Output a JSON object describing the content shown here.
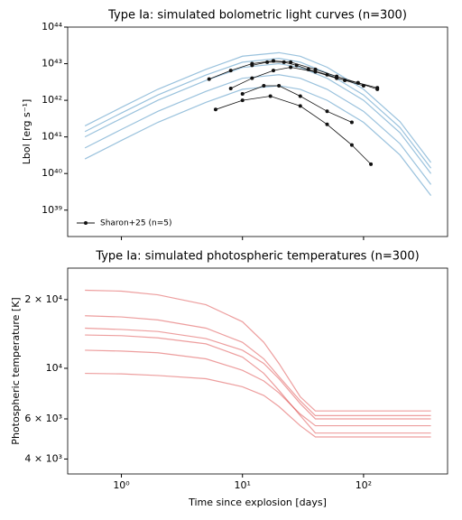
{
  "chart_data": [
    {
      "type": "line",
      "title": "Type Ia: simulated bolometric light curves (n=300)",
      "ylabel": "Lbol [erg s⁻¹]",
      "xlog": true,
      "ylog": true,
      "xlim": [
        0.36,
        494
      ],
      "ylim": [
        1.9e+38,
        1e+44
      ],
      "xticks": [
        1,
        10,
        100
      ],
      "show_xtick_labels": false,
      "yticks": [
        {
          "value": 1e+39,
          "label": "10³⁹"
        },
        {
          "value": 1e+40,
          "label": "10⁴⁰"
        },
        {
          "value": 1e+41,
          "label": "10⁴¹"
        },
        {
          "value": 1e+42,
          "label": "10⁴²"
        },
        {
          "value": 1e+43,
          "label": "10⁴³"
        },
        {
          "value": 1e+44,
          "label": "10⁴⁴"
        }
      ],
      "x": [
        0.5,
        1,
        2,
        5,
        10,
        20,
        30,
        50,
        100,
        200,
        360
      ],
      "color": "#1f77b4",
      "series": [
        {
          "values": [
            1e+41,
            3.2e+41,
            1e+42,
            3.5e+42,
            7.9e+42,
            1e+43,
            7.9e+42,
            4e+42,
            1e+42,
            1.3e+41,
            1e+40
          ]
        },
        {
          "values": [
            2e+41,
            6.4e+41,
            2e+42,
            7e+42,
            1.6e+43,
            2e+43,
            1.6e+43,
            8e+42,
            2e+42,
            2.6e+41,
            2e+40
          ]
        },
        {
          "values": [
            5e+40,
            1.6e+41,
            5e+41,
            1.75e+42,
            4e+42,
            5e+42,
            4e+42,
            2e+42,
            5e+41,
            6.5e+40,
            5e+39
          ]
        },
        {
          "values": [
            2.5e+40,
            8e+40,
            2.5e+41,
            8.8e+41,
            2e+42,
            2.5e+42,
            2e+42,
            1e+42,
            2.5e+41,
            3.2e+40,
            2.5e+39
          ]
        },
        {
          "values": [
            1.4e+41,
            4.5e+41,
            1.4e+42,
            4.9e+42,
            1.1e+43,
            1.4e+43,
            1.1e+43,
            5.6e+42,
            1.4e+42,
            1.8e+41,
            1.4e+40
          ]
        }
      ],
      "observed": {
        "name": "Sharon+25 (n=5)",
        "color": "#111111",
        "legend": "lower left",
        "curves": [
          {
            "x": [
              5.3,
              8,
              12,
              18,
              25,
              40,
              60,
              90,
              130
            ],
            "values": [
              3.8e+42,
              6.5e+42,
              1e+43,
              1.2e+43,
              1.1e+43,
              7e+42,
              4.5e+42,
              3e+42,
              2.2e+42
            ]
          },
          {
            "x": [
              8,
              12,
              18,
              25,
              40,
              60,
              90,
              130
            ],
            "values": [
              2.1e+42,
              4e+42,
              6.5e+42,
              8e+42,
              6e+42,
              4e+42,
              3e+42,
              2e+42
            ]
          },
          {
            "x": [
              10,
              15,
              20,
              30,
              50,
              80
            ],
            "values": [
              1.5e+42,
              2.5e+42,
              2.5e+42,
              1.3e+42,
              5e+41,
              2.5e+41
            ]
          },
          {
            "x": [
              6,
              10,
              17,
              30,
              50,
              80,
              115
            ],
            "values": [
              5.6e+41,
              1e+42,
              1.3e+42,
              7e+41,
              2.2e+41,
              6e+40,
              1.8e+40
            ]
          },
          {
            "x": [
              12,
              16,
              22,
              28,
              35,
              50,
              70,
              100
            ],
            "values": [
              9e+42,
              1.1e+43,
              1.1e+43,
              9e+42,
              7e+42,
              5e+42,
              3.5e+42,
              2.5e+42
            ]
          }
        ]
      }
    },
    {
      "type": "line",
      "title": "Type Ia: simulated photospheric temperatures (n=300)",
      "ylabel": "Photospheric temperature [K]",
      "xlabel": "Time since explosion [days]",
      "xlog": true,
      "ylog": true,
      "xlim": [
        0.36,
        494
      ],
      "ylim": [
        3440,
        27500
      ],
      "xticks": [
        {
          "value": 1,
          "label": "10⁰"
        },
        {
          "value": 10,
          "label": "10¹"
        },
        {
          "value": 100,
          "label": "10²"
        }
      ],
      "show_xtick_labels": true,
      "yticks": [
        {
          "value": 4000,
          "label": "4 × 10³"
        },
        {
          "value": 6000,
          "label": "6 × 10³"
        },
        {
          "value": 10000,
          "label": "10⁴"
        },
        {
          "value": 20000,
          "label": "2 × 10⁴"
        }
      ],
      "x": [
        0.5,
        1,
        2,
        5,
        10,
        15,
        20,
        30,
        40,
        60,
        100,
        360
      ],
      "color": "#d62728",
      "series": [
        {
          "values": [
            15000,
            14800,
            14500,
            13500,
            12000,
            10500,
            9000,
            7000,
            6000,
            6000,
            6000,
            6000
          ]
        },
        {
          "values": [
            22000,
            21800,
            21000,
            19000,
            16000,
            13000,
            10500,
            7500,
            6500,
            6500,
            6500,
            6500
          ]
        },
        {
          "values": [
            17000,
            16800,
            16300,
            15000,
            13000,
            11000,
            9200,
            7200,
            6200,
            6200,
            6200,
            6200
          ]
        },
        {
          "values": [
            12000,
            11900,
            11700,
            11000,
            9800,
            8800,
            7800,
            6300,
            5600,
            5600,
            5600,
            5600
          ]
        },
        {
          "values": [
            9500,
            9450,
            9300,
            9000,
            8300,
            7600,
            6800,
            5600,
            5000,
            5000,
            5000,
            5000
          ]
        },
        {
          "values": [
            14000,
            13900,
            13600,
            12800,
            11200,
            9500,
            8000,
            6200,
            5200,
            5200,
            5200,
            5200
          ]
        }
      ]
    }
  ]
}
